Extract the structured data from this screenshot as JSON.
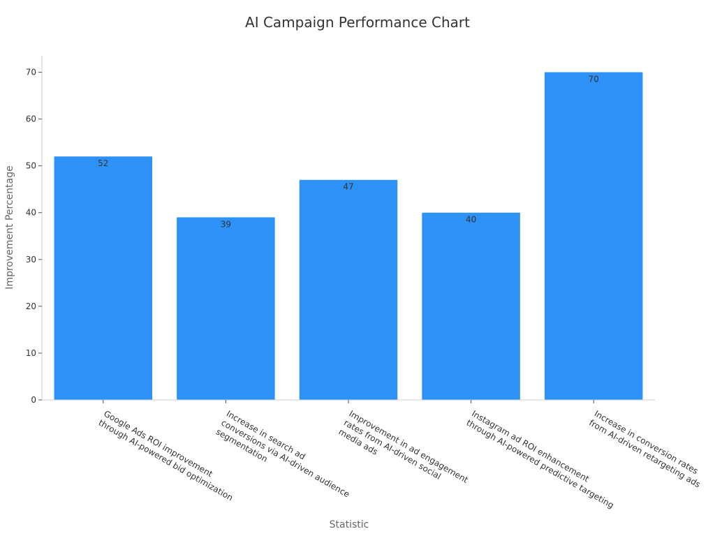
{
  "chart_data": {
    "type": "bar",
    "title": "AI Campaign Performance Chart",
    "xlabel": "Statistic",
    "ylabel": "Improvement Percentage",
    "categories": [
      "Google Ads ROI improvement through AI-powered bid optimization",
      "Increase in search ad conversions via AI-driven audience segmentation",
      "Improvement in ad engagement rates from AI-driven social media ads",
      "Instagram ad ROI enhancement through AI-powered predictive targeting",
      "Increase in conversion rates from AI-driven retargeting ads"
    ],
    "category_lines": [
      [
        "Google Ads ROI improvement",
        "through AI-powered bid optimization"
      ],
      [
        "Increase in search ad",
        "conversions via AI-driven audience",
        "segmentation"
      ],
      [
        "Improvement in ad engagement",
        "rates from AI-driven social",
        "media ads"
      ],
      [
        "Instagram ad ROI enhancement",
        "through AI-powered predictive targeting"
      ],
      [
        "Increase in conversion rates",
        "from AI-driven retargeting ads"
      ]
    ],
    "values": [
      52,
      39,
      47,
      40,
      70
    ],
    "ylim": [
      0,
      73.5
    ],
    "yticks": [
      0,
      10,
      20,
      30,
      40,
      50,
      60,
      70
    ],
    "bar_color": "#2d91f5",
    "grid": false,
    "legend": "none"
  }
}
